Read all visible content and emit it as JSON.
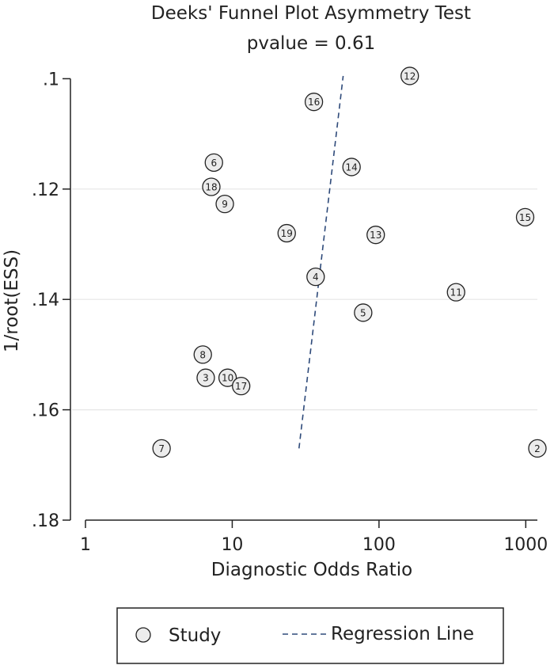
{
  "chart_data": {
    "type": "scatter",
    "title": "Deeks' Funnel Plot Asymmetry Test",
    "subtitle": "pvalue = 0.61",
    "xlabel": "Diagnostic Odds Ratio",
    "ylabel": "1/root(ESS)",
    "x_scale": "log",
    "xlim": [
      1,
      1200
    ],
    "ylim": [
      0.18,
      0.0975
    ],
    "y_reversed": true,
    "x_ticks": [
      {
        "value": 1,
        "label": "1"
      },
      {
        "value": 10,
        "label": "10"
      },
      {
        "value": 100,
        "label": "100"
      },
      {
        "value": 1000,
        "label": "1000"
      }
    ],
    "y_ticks": [
      {
        "value": 0.1,
        "label": ".1"
      },
      {
        "value": 0.12,
        "label": ".12"
      },
      {
        "value": 0.14,
        "label": ".14"
      },
      {
        "value": 0.16,
        "label": ".16"
      },
      {
        "value": 0.18,
        "label": ".18"
      }
    ],
    "grid": true,
    "series": [
      {
        "name": "Study",
        "points": [
          {
            "label": "2",
            "x": 1200,
            "y": 0.167
          },
          {
            "label": "3",
            "x": 6.6,
            "y": 0.1542
          },
          {
            "label": "4",
            "x": 37,
            "y": 0.1359
          },
          {
            "label": "5",
            "x": 78,
            "y": 0.1424
          },
          {
            "label": "6",
            "x": 7.5,
            "y": 0.1152
          },
          {
            "label": "7",
            "x": 3.3,
            "y": 0.167
          },
          {
            "label": "8",
            "x": 6.3,
            "y": 0.15
          },
          {
            "label": "9",
            "x": 8.9,
            "y": 0.1227
          },
          {
            "label": "10",
            "x": 9.3,
            "y": 0.1542
          },
          {
            "label": "11",
            "x": 335,
            "y": 0.1387
          },
          {
            "label": "12",
            "x": 162,
            "y": 0.0995
          },
          {
            "label": "13",
            "x": 95,
            "y": 0.1283
          },
          {
            "label": "14",
            "x": 65,
            "y": 0.116
          },
          {
            "label": "15",
            "x": 990,
            "y": 0.1251
          },
          {
            "label": "16",
            "x": 36,
            "y": 0.1042
          },
          {
            "label": "17",
            "x": 11.5,
            "y": 0.1557
          },
          {
            "label": "18",
            "x": 7.2,
            "y": 0.1196
          },
          {
            "label": "19",
            "x": 23.5,
            "y": 0.128
          }
        ]
      },
      {
        "name": "Regression Line",
        "line": [
          {
            "x": 28.5,
            "y": 0.167
          },
          {
            "x": 57,
            "y": 0.0995
          }
        ],
        "style": "dashed",
        "color": "#2e4a7a"
      }
    ],
    "legend": {
      "position": "bottom",
      "items": [
        "Study",
        "Regression Line"
      ]
    }
  }
}
